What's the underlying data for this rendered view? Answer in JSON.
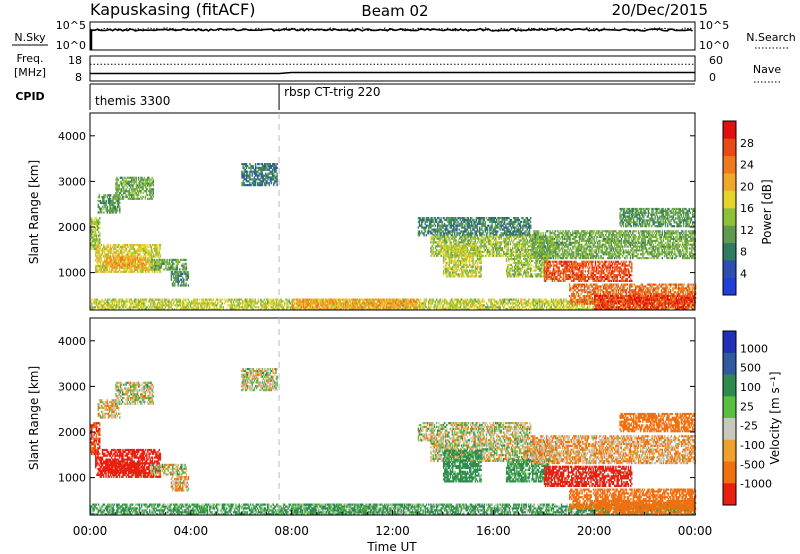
{
  "header": {
    "station": "Kapuskasing (fitACF)",
    "beam": "Beam 02",
    "date": "20/Dec/2015"
  },
  "chart_data": {
    "type": "heatmap",
    "time_axis": {
      "label": "Time UT",
      "ticks": [
        "00:00",
        "04:00",
        "08:00",
        "12:00",
        "16:00",
        "20:00",
        "00:00"
      ],
      "range_hours": [
        0,
        24
      ]
    },
    "marker_time_hours": 7.5,
    "panels": {
      "nsky": {
        "left_label": "N.Sky",
        "right_label": "N.Search",
        "left_ticks": [
          "10^5",
          "10^0"
        ],
        "right_ticks": [
          "10^5",
          "10^0"
        ],
        "nsky_level": 0.72,
        "nsearch_level": 0.74
      },
      "freq": {
        "left_label": "Freq.",
        "left_unit": "[MHz]",
        "right_label": "Nave",
        "left_ticks": [
          "18",
          "8"
        ],
        "right_ticks": [
          "60",
          "0"
        ],
        "freq_level": 0.35,
        "nave_level": 0.3
      },
      "cpid": {
        "label": "CPID",
        "segments": [
          {
            "name": "themis 3300",
            "start_hours": 0
          },
          {
            "name": "rbsp CT-trig 220",
            "start_hours": 7.5
          }
        ]
      },
      "power": {
        "ylabel": "Slant Range [km]",
        "yticks": [
          1000,
          2000,
          3000,
          4000
        ],
        "yrange": [
          180,
          4500
        ],
        "colorbar_label": "Power [dB]",
        "colorbar_ticks": [
          "4",
          "8",
          "12",
          "16",
          "20",
          "24",
          "28"
        ],
        "colorbar_colors": [
          "#1f3fd9",
          "#2f4fb0",
          "#2f7a62",
          "#5f9a50",
          "#8fc03a",
          "#e4d42a",
          "#f0a82c",
          "#ef7a1e",
          "#e84a16",
          "#e01010"
        ]
      },
      "velocity": {
        "ylabel": "Slant Range [km]",
        "yticks": [
          1000,
          2000,
          3000,
          4000
        ],
        "yrange": [
          180,
          4500
        ],
        "colorbar_label": "Velocity [m s⁻¹]",
        "colorbar_ticks": [
          "1000",
          "500",
          "100",
          "25",
          "-25",
          "-100",
          "-500",
          "-1000"
        ],
        "colorbar_colors": [
          "#2030b8",
          "#2f5aa0",
          "#2f8a50",
          "#58c040",
          "#c8c8c0",
          "#f0a030",
          "#f07010",
          "#e82010"
        ]
      }
    },
    "regions": [
      {
        "t0": 0.0,
        "t1": 0.4,
        "r0": 1500,
        "r1": 2200,
        "p": 14,
        "v": -300
      },
      {
        "t0": 0.3,
        "t1": 1.2,
        "r0": 2300,
        "r1": 2700,
        "p": 10,
        "v": -25
      },
      {
        "t0": 1.0,
        "t1": 2.5,
        "r0": 2600,
        "r1": 3100,
        "p": 12,
        "v": 0
      },
      {
        "t0": 0.2,
        "t1": 2.8,
        "r0": 1000,
        "r1": 1600,
        "p": 18,
        "v": -400
      },
      {
        "t0": 0.6,
        "t1": 2.2,
        "r0": 1100,
        "r1": 1350,
        "p": 22,
        "v": -700
      },
      {
        "t0": 2.4,
        "t1": 3.8,
        "r0": 1050,
        "r1": 1300,
        "p": 12,
        "v": 0
      },
      {
        "t0": 3.2,
        "t1": 3.9,
        "r0": 700,
        "r1": 1000,
        "p": 9,
        "v": -50
      },
      {
        "t0": 6.0,
        "t1": 7.4,
        "r0": 2900,
        "r1": 3400,
        "p": 7,
        "v": 0
      },
      {
        "t0": 0.0,
        "t1": 24.0,
        "r0": 180,
        "r1": 420,
        "p": 16,
        "v": 80
      },
      {
        "t0": 8.0,
        "t1": 13.0,
        "r0": 180,
        "r1": 400,
        "p": 22,
        "v": 60
      },
      {
        "t0": 13.0,
        "t1": 17.5,
        "r0": 1800,
        "r1": 2200,
        "p": 8,
        "v": 0
      },
      {
        "t0": 13.5,
        "t1": 18.5,
        "r0": 1350,
        "r1": 1800,
        "p": 14,
        "v": 0
      },
      {
        "t0": 14.0,
        "t1": 15.5,
        "r0": 900,
        "r1": 1600,
        "p": 16,
        "v": 120
      },
      {
        "t0": 16.5,
        "t1": 18.2,
        "r0": 900,
        "r1": 1400,
        "p": 14,
        "v": 100
      },
      {
        "t0": 17.5,
        "t1": 24.0,
        "r0": 1300,
        "r1": 1900,
        "p": 12,
        "v": -50
      },
      {
        "t0": 18.0,
        "t1": 21.5,
        "r0": 800,
        "r1": 1250,
        "p": 28,
        "v": -900
      },
      {
        "t0": 19.0,
        "t1": 24.0,
        "r0": 300,
        "r1": 750,
        "p": 26,
        "v": -200
      },
      {
        "t0": 20.0,
        "t1": 24.0,
        "r0": 180,
        "r1": 500,
        "p": 30,
        "v": -200
      },
      {
        "t0": 21.0,
        "t1": 24.0,
        "r0": 2000,
        "r1": 2400,
        "p": 10,
        "v": -150
      }
    ]
  }
}
